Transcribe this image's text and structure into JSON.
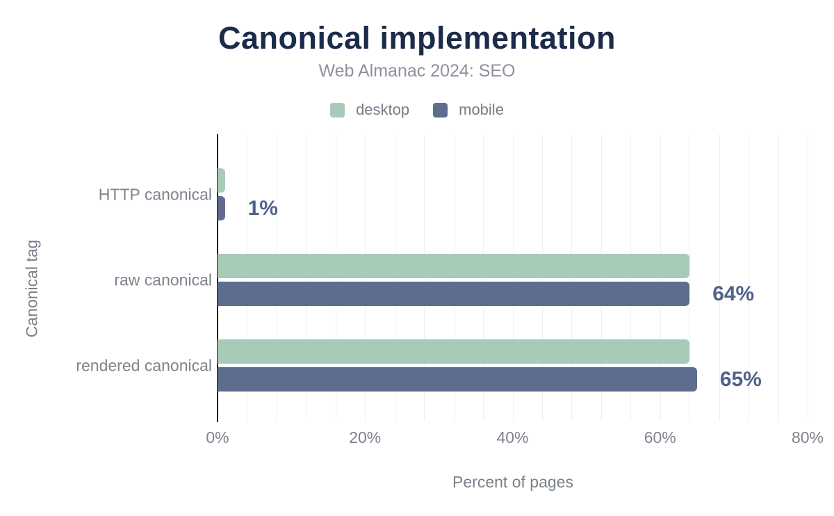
{
  "header": {
    "title": "Canonical implementation",
    "subtitle": "Web Almanac 2024: SEO"
  },
  "legend": [
    {
      "label": "desktop",
      "color": "#a8cbb8"
    },
    {
      "label": "mobile",
      "color": "#5e6d8d"
    }
  ],
  "chart_data": {
    "type": "bar",
    "orientation": "horizontal",
    "title": "Canonical implementation",
    "subtitle": "Web Almanac 2024: SEO",
    "categories": [
      "HTTP canonical",
      "raw canonical",
      "rendered canonical"
    ],
    "series": [
      {
        "name": "desktop",
        "color": "#a8cbb8",
        "values": [
          1,
          64,
          64
        ]
      },
      {
        "name": "mobile",
        "color": "#5e6d8d",
        "values": [
          1,
          64,
          65
        ]
      }
    ],
    "value_labels": [
      "1%",
      "64%",
      "65%"
    ],
    "xlabel": "Percent of pages",
    "ylabel": "Canonical tag",
    "x_ticks": [
      "0%",
      "20%",
      "40%",
      "60%",
      "80%"
    ],
    "xlim": [
      0,
      80
    ],
    "grid": "vertical minor gridlines every 4%",
    "legend_position": "top"
  },
  "colors": {
    "title": "#1c2b4a",
    "subtitle": "#8c919b",
    "axis_text": "#7d828c",
    "value_label": "#50618a",
    "gridline": "#efefef",
    "axis_line": "#1d2129",
    "background": "#ffffff"
  }
}
